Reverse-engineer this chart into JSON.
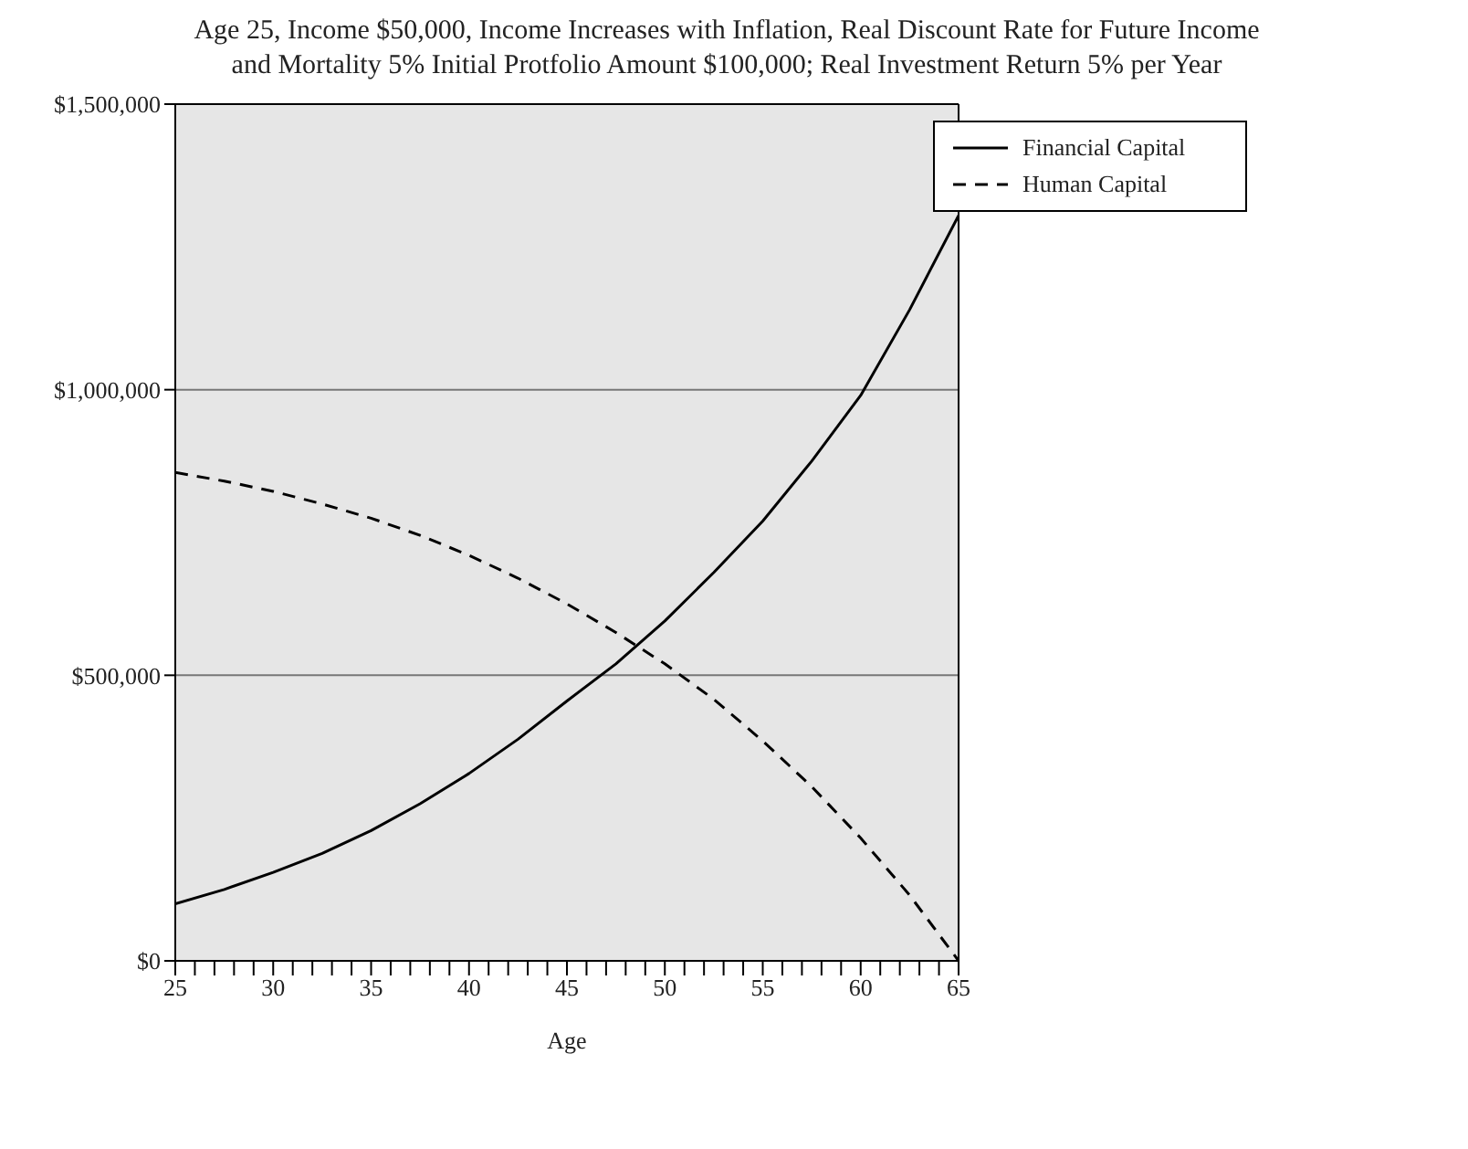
{
  "chart_data": {
    "type": "line",
    "title": "Age 25, Income $50,000, Income Increases with Inflation, Real Discount Rate for Future Income and Mortality 5% Initial Protfolio Amount $100,000; Real Investment Return 5% per Year",
    "xlabel": "Age",
    "x": [
      25,
      27.5,
      30,
      32.5,
      35,
      37.5,
      40,
      42.5,
      45,
      47.5,
      50,
      52.5,
      55,
      57.5,
      60,
      62.5,
      65
    ],
    "series": [
      {
        "name": "Financial Capital",
        "color": "#000000",
        "line_style": "solid",
        "values": [
          100000,
          125000,
          155000,
          188000,
          228000,
          275000,
          328000,
          388000,
          455000,
          520000,
          595000,
          680000,
          770000,
          875000,
          990000,
          1140000,
          1305000
        ]
      },
      {
        "name": "Human Capital",
        "color": "#000000",
        "line_style": "dashed",
        "values": [
          855000,
          840000,
          822000,
          800000,
          775000,
          745000,
          710000,
          670000,
          625000,
          575000,
          520000,
          458000,
          385000,
          305000,
          215000,
          115000,
          0
        ]
      }
    ],
    "xlim": [
      25,
      65
    ],
    "xticks": [
      25,
      {
        "value": 26,
        "label": null
      },
      {
        "value": 27,
        "label": null
      },
      {
        "value": 28,
        "label": null
      },
      {
        "value": 29,
        "label": null
      },
      30,
      {
        "value": 31,
        "label": null
      },
      {
        "value": 32,
        "label": null
      },
      {
        "value": 33,
        "label": null
      },
      {
        "value": 34,
        "label": null
      },
      35,
      {
        "value": 36,
        "label": null
      },
      {
        "value": 37,
        "label": null
      },
      {
        "value": 38,
        "label": null
      },
      {
        "value": 39,
        "label": null
      },
      40,
      {
        "value": 41,
        "label": null
      },
      {
        "value": 42,
        "label": null
      },
      {
        "value": 43,
        "label": null
      },
      {
        "value": 44,
        "label": null
      },
      45,
      {
        "value": 46,
        "label": null
      },
      {
        "value": 47,
        "label": null
      },
      {
        "value": 48,
        "label": null
      },
      {
        "value": 49,
        "label": null
      },
      50,
      {
        "value": 51,
        "label": null
      },
      {
        "value": 52,
        "label": null
      },
      {
        "value": 53,
        "label": null
      },
      {
        "value": 54,
        "label": null
      },
      55,
      {
        "value": 56,
        "label": null
      },
      {
        "value": 57,
        "label": null
      },
      {
        "value": 58,
        "label": null
      },
      {
        "value": 59,
        "label": null
      },
      60,
      {
        "value": 61,
        "label": null
      },
      {
        "value": 62,
        "label": null
      },
      {
        "value": 63,
        "label": null
      },
      {
        "value": 64,
        "label": null
      },
      65
    ],
    "ylim": [
      0,
      1500000
    ],
    "yticks": [
      {
        "value": 0,
        "label": "$0"
      },
      {
        "value": 500000,
        "label": "$500,000"
      },
      {
        "value": 1000000,
        "label": "$1,000,000"
      },
      {
        "value": 1500000,
        "label": "$1,500,000"
      }
    ],
    "grid": "y",
    "legend": "top right",
    "marker": "none"
  }
}
